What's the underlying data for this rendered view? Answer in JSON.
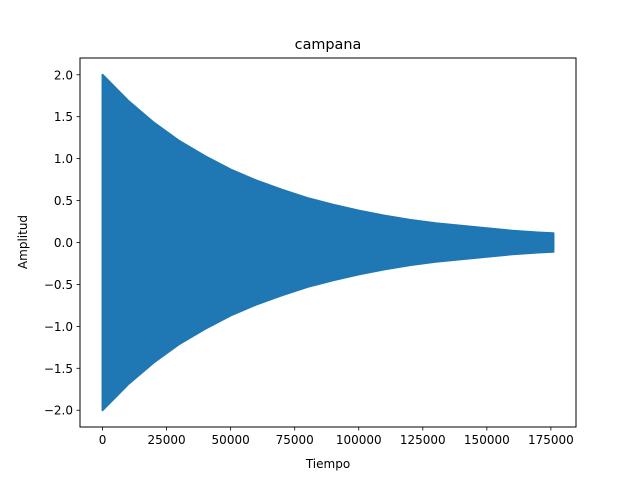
{
  "chart_data": {
    "type": "line",
    "title": "campana",
    "xlabel": "Tiempo",
    "ylabel": "Amplitud",
    "xlim": [
      -8800,
      184800
    ],
    "ylim": [
      -2.2,
      2.2
    ],
    "xticks": [
      0,
      25000,
      50000,
      75000,
      100000,
      125000,
      150000,
      175000
    ],
    "xtick_labels": [
      "0",
      "25000",
      "50000",
      "75000",
      "100000",
      "125000",
      "150000",
      "175000"
    ],
    "yticks": [
      2.0,
      1.5,
      1.0,
      0.5,
      0.0,
      -0.5,
      -1.0,
      -1.5,
      -2.0
    ],
    "ytick_labels": [
      "2.0",
      "1.5",
      "1.0",
      "0.5",
      "0.0",
      "−0.5",
      "−1.0",
      "−1.5",
      "−2.0"
    ],
    "grid": false,
    "series": [
      {
        "color": "#1f77b4",
        "description_envelope": "decaying oscillation filling between +/- envelope",
        "x": [
          0,
          10000,
          20000,
          30000,
          40000,
          50000,
          60000,
          70000,
          80000,
          90000,
          100000,
          110000,
          120000,
          130000,
          140000,
          150000,
          160000,
          170000,
          176000
        ],
        "envelope": [
          2.0,
          1.69,
          1.43,
          1.21,
          1.03,
          0.87,
          0.74,
          0.63,
          0.53,
          0.45,
          0.38,
          0.32,
          0.27,
          0.23,
          0.2,
          0.17,
          0.14,
          0.12,
          0.11
        ]
      }
    ]
  }
}
